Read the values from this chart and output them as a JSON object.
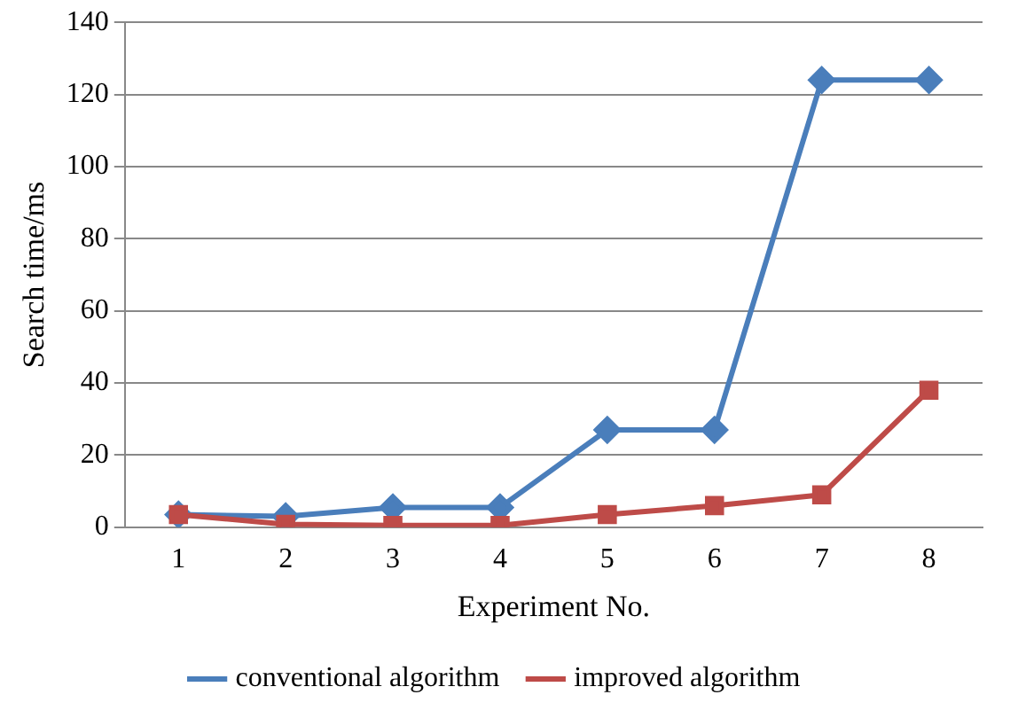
{
  "chart_data": {
    "type": "line",
    "xlabel": "Experiment No.",
    "ylabel": "Search time/ms",
    "categories": [
      "1",
      "2",
      "3",
      "4",
      "5",
      "6",
      "7",
      "8"
    ],
    "series": [
      {
        "name": "conventional algorithm",
        "color": "#4a7ebb",
        "marker": "diamond",
        "values": [
          3.5,
          3,
          5.5,
          5.5,
          27,
          27,
          124,
          124
        ]
      },
      {
        "name": "improved algorithm",
        "color": "#be4b48",
        "marker": "square",
        "values": [
          3.5,
          0.8,
          0.5,
          0.5,
          3.5,
          6,
          9,
          38
        ]
      }
    ],
    "ylim": [
      0,
      140
    ],
    "yticks": [
      0,
      20,
      40,
      60,
      80,
      100,
      120,
      140
    ],
    "grid": "y",
    "legend": "bottom",
    "line_style": "solid"
  }
}
